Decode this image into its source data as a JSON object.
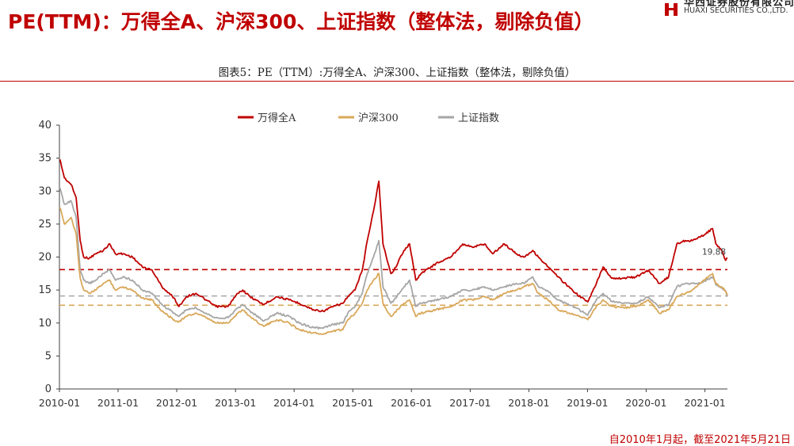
{
  "page": {
    "title": "PE(TTM)：万得全A、沪深300、上证指数（整体法，剔除负值）",
    "caption": "图表5：PE（TTM）:万得全A、沪深300、上证指数（整体法，剔除负值）",
    "footnote": "自2010年1月起，截至2021年5月21日",
    "logo_cn": "华西证券股份有限公司",
    "logo_en": "HUAXI SECURITIES CO.,LTD."
  },
  "colors": {
    "title": "#c00000",
    "wind_all_a": "#c00000",
    "csi300": "#d9a85a",
    "sse": "#a6a6a6",
    "axis": "#404040"
  },
  "chart_data": {
    "type": "line",
    "title": "图表5：PE（TTM）:万得全A、沪深300、上证指数（整体法，剔除负值）",
    "xlabel": "",
    "ylabel": "",
    "ylim": [
      0,
      40
    ],
    "yticks": [
      0,
      5,
      10,
      15,
      20,
      25,
      30,
      35,
      40
    ],
    "xticks": [
      "2010-01",
      "2011-01",
      "2012-01",
      "2013-01",
      "2014-01",
      "2015-01",
      "2016-01",
      "2017-01",
      "2018-01",
      "2019-01",
      "2020-01",
      "2021-01"
    ],
    "xrange": [
      "2010-01-01",
      "2021-05-21"
    ],
    "grid": false,
    "legend_position": "top-center",
    "series": [
      {
        "name": "万得全A",
        "color": "#c00000",
        "points": [
          [
            "2010-01-04",
            34.8
          ],
          [
            "2010-02-01",
            32.0
          ],
          [
            "2010-03-15",
            31.0
          ],
          [
            "2010-04-15",
            29.0
          ],
          [
            "2010-05-10",
            22.5
          ],
          [
            "2010-06-01",
            20.0
          ],
          [
            "2010-07-05",
            19.8
          ],
          [
            "2010-08-15",
            20.5
          ],
          [
            "2010-10-01",
            21.0
          ],
          [
            "2010-11-10",
            22.0
          ],
          [
            "2010-12-15",
            20.5
          ],
          [
            "2011-02-01",
            20.5
          ],
          [
            "2011-04-01",
            20.0
          ],
          [
            "2011-06-01",
            18.5
          ],
          [
            "2011-08-01",
            18.0
          ],
          [
            "2011-10-01",
            15.5
          ],
          [
            "2011-12-15",
            13.8
          ],
          [
            "2012-01-15",
            12.5
          ],
          [
            "2012-03-01",
            14.0
          ],
          [
            "2012-05-01",
            14.5
          ],
          [
            "2012-07-01",
            13.5
          ],
          [
            "2012-09-01",
            12.5
          ],
          [
            "2012-11-15",
            12.5
          ],
          [
            "2013-01-15",
            14.5
          ],
          [
            "2013-02-15",
            15.0
          ],
          [
            "2013-04-01",
            14.0
          ],
          [
            "2013-06-25",
            12.8
          ],
          [
            "2013-09-15",
            14.0
          ],
          [
            "2013-12-01",
            13.5
          ],
          [
            "2014-02-01",
            13.0
          ],
          [
            "2014-05-01",
            12.0
          ],
          [
            "2014-07-01",
            11.8
          ],
          [
            "2014-09-01",
            12.5
          ],
          [
            "2014-11-01",
            13.0
          ],
          [
            "2014-12-01",
            14.0
          ],
          [
            "2015-01-15",
            15.0
          ],
          [
            "2015-03-01",
            18.0
          ],
          [
            "2015-04-01",
            22.5
          ],
          [
            "2015-05-10",
            27.0
          ],
          [
            "2015-06-12",
            31.5
          ],
          [
            "2015-07-08",
            22.0
          ],
          [
            "2015-08-26",
            17.5
          ],
          [
            "2015-09-15",
            18.0
          ],
          [
            "2015-11-15",
            21.0
          ],
          [
            "2015-12-20",
            22.0
          ],
          [
            "2016-01-28",
            16.5
          ],
          [
            "2016-03-01",
            17.5
          ],
          [
            "2016-06-01",
            19.0
          ],
          [
            "2016-09-01",
            20.0
          ],
          [
            "2016-11-15",
            22.0
          ],
          [
            "2017-01-15",
            21.5
          ],
          [
            "2017-04-01",
            22.0
          ],
          [
            "2017-05-20",
            20.5
          ],
          [
            "2017-08-01",
            22.0
          ],
          [
            "2017-10-15",
            20.5
          ],
          [
            "2017-12-01",
            20.0
          ],
          [
            "2018-01-25",
            21.0
          ],
          [
            "2018-03-01",
            20.0
          ],
          [
            "2018-05-01",
            18.5
          ],
          [
            "2018-07-01",
            17.0
          ],
          [
            "2018-10-20",
            14.5
          ],
          [
            "2018-12-15",
            13.5
          ],
          [
            "2019-01-03",
            13.2
          ],
          [
            "2019-02-25",
            16.0
          ],
          [
            "2019-04-08",
            18.5
          ],
          [
            "2019-06-01",
            16.8
          ],
          [
            "2019-08-15",
            16.8
          ],
          [
            "2019-11-01",
            17.0
          ],
          [
            "2020-01-15",
            18.0
          ],
          [
            "2020-03-23",
            16.0
          ],
          [
            "2020-05-20",
            17.0
          ],
          [
            "2020-07-10",
            22.0
          ],
          [
            "2020-09-01",
            22.5
          ],
          [
            "2020-10-15",
            22.5
          ],
          [
            "2020-12-01",
            23.0
          ],
          [
            "2021-02-18",
            24.3
          ],
          [
            "2021-03-10",
            22.0
          ],
          [
            "2021-04-15",
            21.0
          ],
          [
            "2021-05-10",
            19.5
          ],
          [
            "2021-05-21",
            19.88
          ]
        ]
      },
      {
        "name": "沪深300",
        "color": "#d9a85a",
        "points": [
          [
            "2010-01-04",
            27.5
          ],
          [
            "2010-02-01",
            25.0
          ],
          [
            "2010-03-15",
            26.0
          ],
          [
            "2010-04-15",
            23.5
          ],
          [
            "2010-05-10",
            16.8
          ],
          [
            "2010-06-01",
            15.0
          ],
          [
            "2010-07-05",
            14.5
          ],
          [
            "2010-08-15",
            15.0
          ],
          [
            "2010-10-01",
            16.0
          ],
          [
            "2010-11-10",
            16.5
          ],
          [
            "2010-12-15",
            15.0
          ],
          [
            "2011-02-01",
            15.5
          ],
          [
            "2011-04-01",
            15.0
          ],
          [
            "2011-06-01",
            13.8
          ],
          [
            "2011-08-01",
            13.5
          ],
          [
            "2011-10-01",
            11.8
          ],
          [
            "2011-12-15",
            10.5
          ],
          [
            "2012-01-15",
            10.2
          ],
          [
            "2012-03-01",
            11.0
          ],
          [
            "2012-05-01",
            11.5
          ],
          [
            "2012-07-01",
            10.8
          ],
          [
            "2012-09-01",
            10.0
          ],
          [
            "2012-11-15",
            10.0
          ],
          [
            "2013-01-15",
            11.5
          ],
          [
            "2013-02-15",
            12.0
          ],
          [
            "2013-04-01",
            11.0
          ],
          [
            "2013-06-25",
            9.5
          ],
          [
            "2013-09-15",
            10.5
          ],
          [
            "2013-12-01",
            10.0
          ],
          [
            "2014-02-01",
            9.0
          ],
          [
            "2014-05-01",
            8.5
          ],
          [
            "2014-07-01",
            8.3
          ],
          [
            "2014-09-01",
            8.8
          ],
          [
            "2014-11-01",
            9.0
          ],
          [
            "2014-12-01",
            10.5
          ],
          [
            "2015-01-15",
            11.5
          ],
          [
            "2015-03-01",
            13.0
          ],
          [
            "2015-04-01",
            15.0
          ],
          [
            "2015-05-10",
            16.5
          ],
          [
            "2015-06-12",
            17.5
          ],
          [
            "2015-07-08",
            13.0
          ],
          [
            "2015-08-26",
            11.0
          ],
          [
            "2015-09-15",
            11.5
          ],
          [
            "2015-11-15",
            13.0
          ],
          [
            "2015-12-20",
            13.5
          ],
          [
            "2016-01-28",
            11.0
          ],
          [
            "2016-03-01",
            11.5
          ],
          [
            "2016-06-01",
            12.0
          ],
          [
            "2016-09-01",
            12.5
          ],
          [
            "2016-11-15",
            13.5
          ],
          [
            "2017-01-15",
            13.5
          ],
          [
            "2017-04-01",
            14.0
          ],
          [
            "2017-05-20",
            13.5
          ],
          [
            "2017-08-01",
            14.5
          ],
          [
            "2017-10-15",
            15.0
          ],
          [
            "2017-12-01",
            15.5
          ],
          [
            "2018-01-25",
            16.0
          ],
          [
            "2018-03-01",
            14.5
          ],
          [
            "2018-05-01",
            13.5
          ],
          [
            "2018-07-01",
            12.0
          ],
          [
            "2018-10-20",
            11.2
          ],
          [
            "2018-12-15",
            10.8
          ],
          [
            "2019-01-03",
            10.5
          ],
          [
            "2019-02-25",
            12.5
          ],
          [
            "2019-04-08",
            13.5
          ],
          [
            "2019-06-01",
            12.5
          ],
          [
            "2019-08-15",
            12.3
          ],
          [
            "2019-11-01",
            12.5
          ],
          [
            "2020-01-15",
            13.5
          ],
          [
            "2020-03-23",
            11.5
          ],
          [
            "2020-05-20",
            12.0
          ],
          [
            "2020-07-10",
            14.0
          ],
          [
            "2020-09-01",
            14.5
          ],
          [
            "2020-10-15",
            15.0
          ],
          [
            "2020-12-01",
            16.0
          ],
          [
            "2021-02-18",
            17.5
          ],
          [
            "2021-03-10",
            16.0
          ],
          [
            "2021-04-15",
            15.5
          ],
          [
            "2021-05-10",
            14.8
          ],
          [
            "2021-05-21",
            14.2
          ]
        ]
      },
      {
        "name": "上证指数",
        "color": "#a6a6a6",
        "points": [
          [
            "2010-01-04",
            30.5
          ],
          [
            "2010-02-01",
            28.0
          ],
          [
            "2010-03-15",
            28.5
          ],
          [
            "2010-04-15",
            26.0
          ],
          [
            "2010-05-10",
            18.0
          ],
          [
            "2010-06-01",
            16.5
          ],
          [
            "2010-07-05",
            16.0
          ],
          [
            "2010-08-15",
            16.5
          ],
          [
            "2010-10-01",
            17.5
          ],
          [
            "2010-11-10",
            18.0
          ],
          [
            "2010-12-15",
            16.5
          ],
          [
            "2011-02-01",
            17.0
          ],
          [
            "2011-04-01",
            16.5
          ],
          [
            "2011-06-01",
            15.0
          ],
          [
            "2011-08-01",
            14.5
          ],
          [
            "2011-10-01",
            12.8
          ],
          [
            "2011-12-15",
            11.5
          ],
          [
            "2012-01-15",
            11.0
          ],
          [
            "2012-03-01",
            12.0
          ],
          [
            "2012-05-01",
            12.3
          ],
          [
            "2012-07-01",
            11.5
          ],
          [
            "2012-09-01",
            10.8
          ],
          [
            "2012-11-15",
            10.8
          ],
          [
            "2013-01-15",
            12.3
          ],
          [
            "2013-02-15",
            12.8
          ],
          [
            "2013-04-01",
            11.8
          ],
          [
            "2013-06-25",
            10.3
          ],
          [
            "2013-09-15",
            11.5
          ],
          [
            "2013-12-01",
            11.0
          ],
          [
            "2014-02-01",
            10.0
          ],
          [
            "2014-05-01",
            9.3
          ],
          [
            "2014-07-01",
            9.2
          ],
          [
            "2014-09-01",
            9.8
          ],
          [
            "2014-11-01",
            10.0
          ],
          [
            "2014-12-01",
            11.5
          ],
          [
            "2015-01-15",
            12.5
          ],
          [
            "2015-03-01",
            14.5
          ],
          [
            "2015-04-01",
            17.5
          ],
          [
            "2015-05-10",
            20.0
          ],
          [
            "2015-06-12",
            22.5
          ],
          [
            "2015-07-08",
            15.5
          ],
          [
            "2015-08-26",
            13.0
          ],
          [
            "2015-09-15",
            13.5
          ],
          [
            "2015-11-15",
            15.5
          ],
          [
            "2015-12-20",
            16.5
          ],
          [
            "2016-01-28",
            12.5
          ],
          [
            "2016-03-01",
            13.0
          ],
          [
            "2016-06-01",
            13.5
          ],
          [
            "2016-09-01",
            14.0
          ],
          [
            "2016-11-15",
            15.0
          ],
          [
            "2017-01-15",
            15.0
          ],
          [
            "2017-04-01",
            15.5
          ],
          [
            "2017-05-20",
            15.0
          ],
          [
            "2017-08-01",
            15.5
          ],
          [
            "2017-10-15",
            16.0
          ],
          [
            "2017-12-01",
            16.0
          ],
          [
            "2018-01-25",
            17.0
          ],
          [
            "2018-03-01",
            15.5
          ],
          [
            "2018-05-01",
            14.8
          ],
          [
            "2018-07-01",
            13.5
          ],
          [
            "2018-10-20",
            12.3
          ],
          [
            "2018-12-15",
            11.5
          ],
          [
            "2019-01-03",
            11.2
          ],
          [
            "2019-02-25",
            13.5
          ],
          [
            "2019-04-08",
            14.5
          ],
          [
            "2019-06-01",
            13.3
          ],
          [
            "2019-08-15",
            13.0
          ],
          [
            "2019-11-01",
            13.0
          ],
          [
            "2020-01-15",
            14.0
          ],
          [
            "2020-03-23",
            12.3
          ],
          [
            "2020-05-20",
            12.8
          ],
          [
            "2020-07-10",
            15.5
          ],
          [
            "2020-09-01",
            16.0
          ],
          [
            "2020-10-15",
            16.0
          ],
          [
            "2020-12-01",
            16.0
          ],
          [
            "2021-02-18",
            17.0
          ],
          [
            "2021-03-10",
            15.8
          ],
          [
            "2021-04-15",
            15.3
          ],
          [
            "2021-05-10",
            14.8
          ],
          [
            "2021-05-21",
            14.0
          ]
        ]
      }
    ],
    "reference_lines": [
      {
        "series": "万得全A",
        "value": 18.1,
        "style": "dashed",
        "color": "#c00000"
      },
      {
        "series": "上证指数",
        "value": 14.1,
        "style": "dashed",
        "color": "#a6a6a6"
      },
      {
        "series": "沪深300",
        "value": 12.7,
        "style": "dashed",
        "color": "#d9a85a"
      }
    ],
    "annotations": [
      {
        "text": "19.88",
        "x": "2021-05-21",
        "y": 19.88,
        "series": "万得全A"
      }
    ]
  }
}
